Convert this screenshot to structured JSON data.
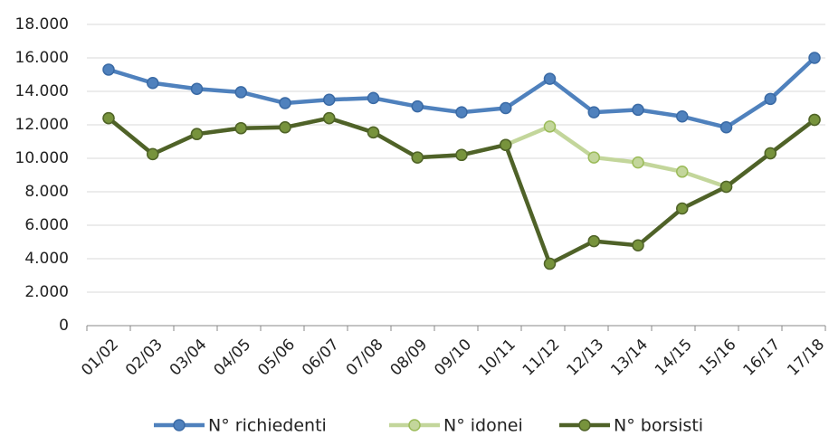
{
  "chart_data": {
    "type": "line",
    "categories": [
      "01/02",
      "02/03",
      "03/04",
      "04/05",
      "05/06",
      "06/07",
      "07/08",
      "08/09",
      "09/10",
      "10/11",
      "11/12",
      "12/13",
      "13/14",
      "14/15",
      "15/16",
      "16/17",
      "17/18"
    ],
    "series": [
      {
        "name": "N° richiedenti",
        "color": "#4f81bd",
        "values": [
          15300,
          14500,
          14150,
          13950,
          13300,
          13500,
          13600,
          13100,
          12750,
          13000,
          14750,
          12750,
          12900,
          12500,
          11850,
          13550,
          16000
        ]
      },
      {
        "name": "N° idonei",
        "color": "#c3d69b",
        "values": [
          12400,
          10250,
          11450,
          11800,
          11850,
          12400,
          11550,
          10050,
          10200,
          10800,
          11900,
          10050,
          9750,
          9200,
          8300,
          10300,
          12300
        ]
      },
      {
        "name": "N° borsisti",
        "color": "#4f6228",
        "values": [
          12400,
          10250,
          11450,
          11800,
          11850,
          12400,
          11550,
          10050,
          10200,
          10800,
          3700,
          5050,
          4800,
          7000,
          8300,
          10300,
          12300
        ]
      }
    ],
    "ylim": [
      0,
      18000
    ],
    "yticks": [
      0,
      {
        "value": 2000,
        "label": "2.000"
      },
      {
        "value": 4000,
        "label": "4.000"
      },
      {
        "value": 6000,
        "label": "6.000"
      },
      {
        "value": 8000,
        "label": "8.000"
      },
      {
        "value": 10000,
        "label": "10.000"
      },
      {
        "value": 12000,
        "label": "12.000"
      },
      {
        "value": 14000,
        "label": "14.000"
      },
      {
        "value": 16000,
        "label": "16.000"
      },
      {
        "value": 18000,
        "label": "18.000"
      }
    ],
    "grid": true
  }
}
